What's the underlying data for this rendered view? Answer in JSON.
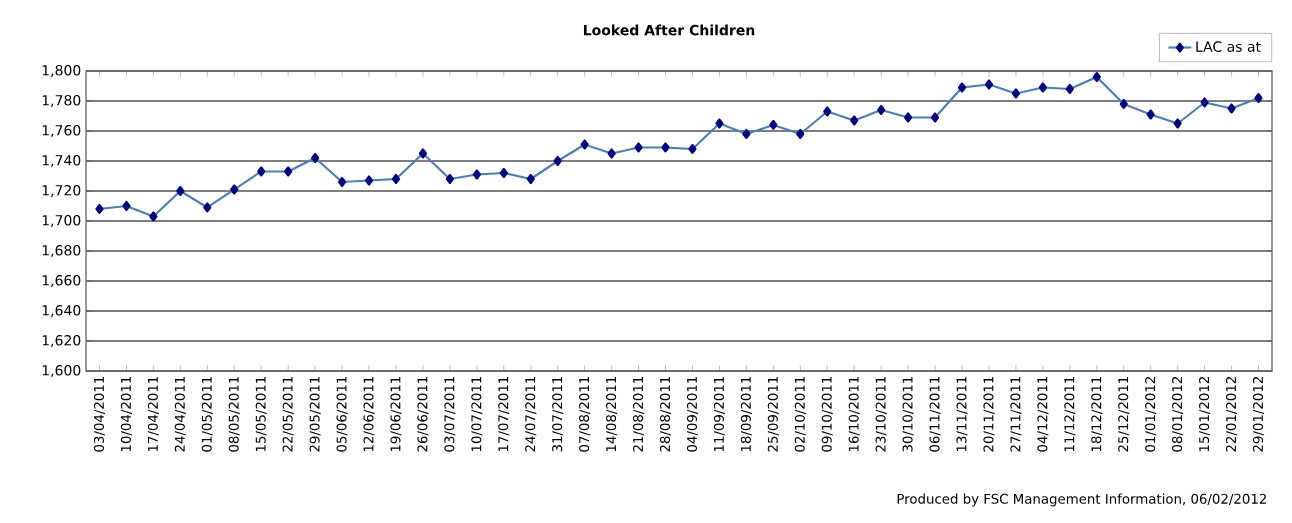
{
  "chart_data": {
    "type": "line",
    "title": "Looked After Children",
    "categories": [
      "03/04/2011",
      "10/04/2011",
      "17/04/2011",
      "24/04/2011",
      "01/05/2011",
      "08/05/2011",
      "15/05/2011",
      "22/05/2011",
      "29/05/2011",
      "05/06/2011",
      "12/06/2011",
      "19/06/2011",
      "26/06/2011",
      "03/07/2011",
      "10/07/2011",
      "17/07/2011",
      "24/07/2011",
      "31/07/2011",
      "07/08/2011",
      "14/08/2011",
      "21/08/2011",
      "28/08/2011",
      "04/09/2011",
      "11/09/2011",
      "18/09/2011",
      "25/09/2011",
      "02/10/2011",
      "09/10/2011",
      "16/10/2011",
      "23/10/2011",
      "30/10/2011",
      "06/11/2011",
      "13/11/2011",
      "20/11/2011",
      "27/11/2011",
      "04/12/2011",
      "11/12/2011",
      "18/12/2011",
      "25/12/2011",
      "01/01/2012",
      "08/01/2012",
      "15/01/2012",
      "22/01/2012",
      "29/01/2012"
    ],
    "series": [
      {
        "name": "LAC as at",
        "color": "#4a7ebb",
        "values": [
          1708,
          1710,
          1703,
          1720,
          1709,
          1721,
          1733,
          1733,
          1742,
          1726,
          1727,
          1728,
          1745,
          1728,
          1731,
          1732,
          1728,
          1740,
          1751,
          1745,
          1749,
          1749,
          1748,
          1765,
          1758,
          1764,
          1758,
          1773,
          1767,
          1774,
          1769,
          1769,
          1789,
          1791,
          1785,
          1789,
          1788,
          1796,
          1778,
          1771,
          1765,
          1779,
          1775,
          1782
        ]
      }
    ],
    "ylim": [
      1600,
      1800
    ],
    "yticks": [
      {
        "value": 1600,
        "label": "1,600"
      },
      {
        "value": 1620,
        "label": "1,620"
      },
      {
        "value": 1640,
        "label": "1,640"
      },
      {
        "value": 1660,
        "label": "1,660"
      },
      {
        "value": 1680,
        "label": "1,680"
      },
      {
        "value": 1700,
        "label": "1,700"
      },
      {
        "value": 1720,
        "label": "1,720"
      },
      {
        "value": 1740,
        "label": "1,740"
      },
      {
        "value": 1760,
        "label": "1,760"
      },
      {
        "value": 1780,
        "label": "1,780"
      },
      {
        "value": 1800,
        "label": "1,800"
      }
    ],
    "grid": "y",
    "legend": "top right",
    "marker": "diamond",
    "line_style": "solid",
    "annotations": [
      "Produced by FSC Management Information, 06/02/2012"
    ]
  }
}
